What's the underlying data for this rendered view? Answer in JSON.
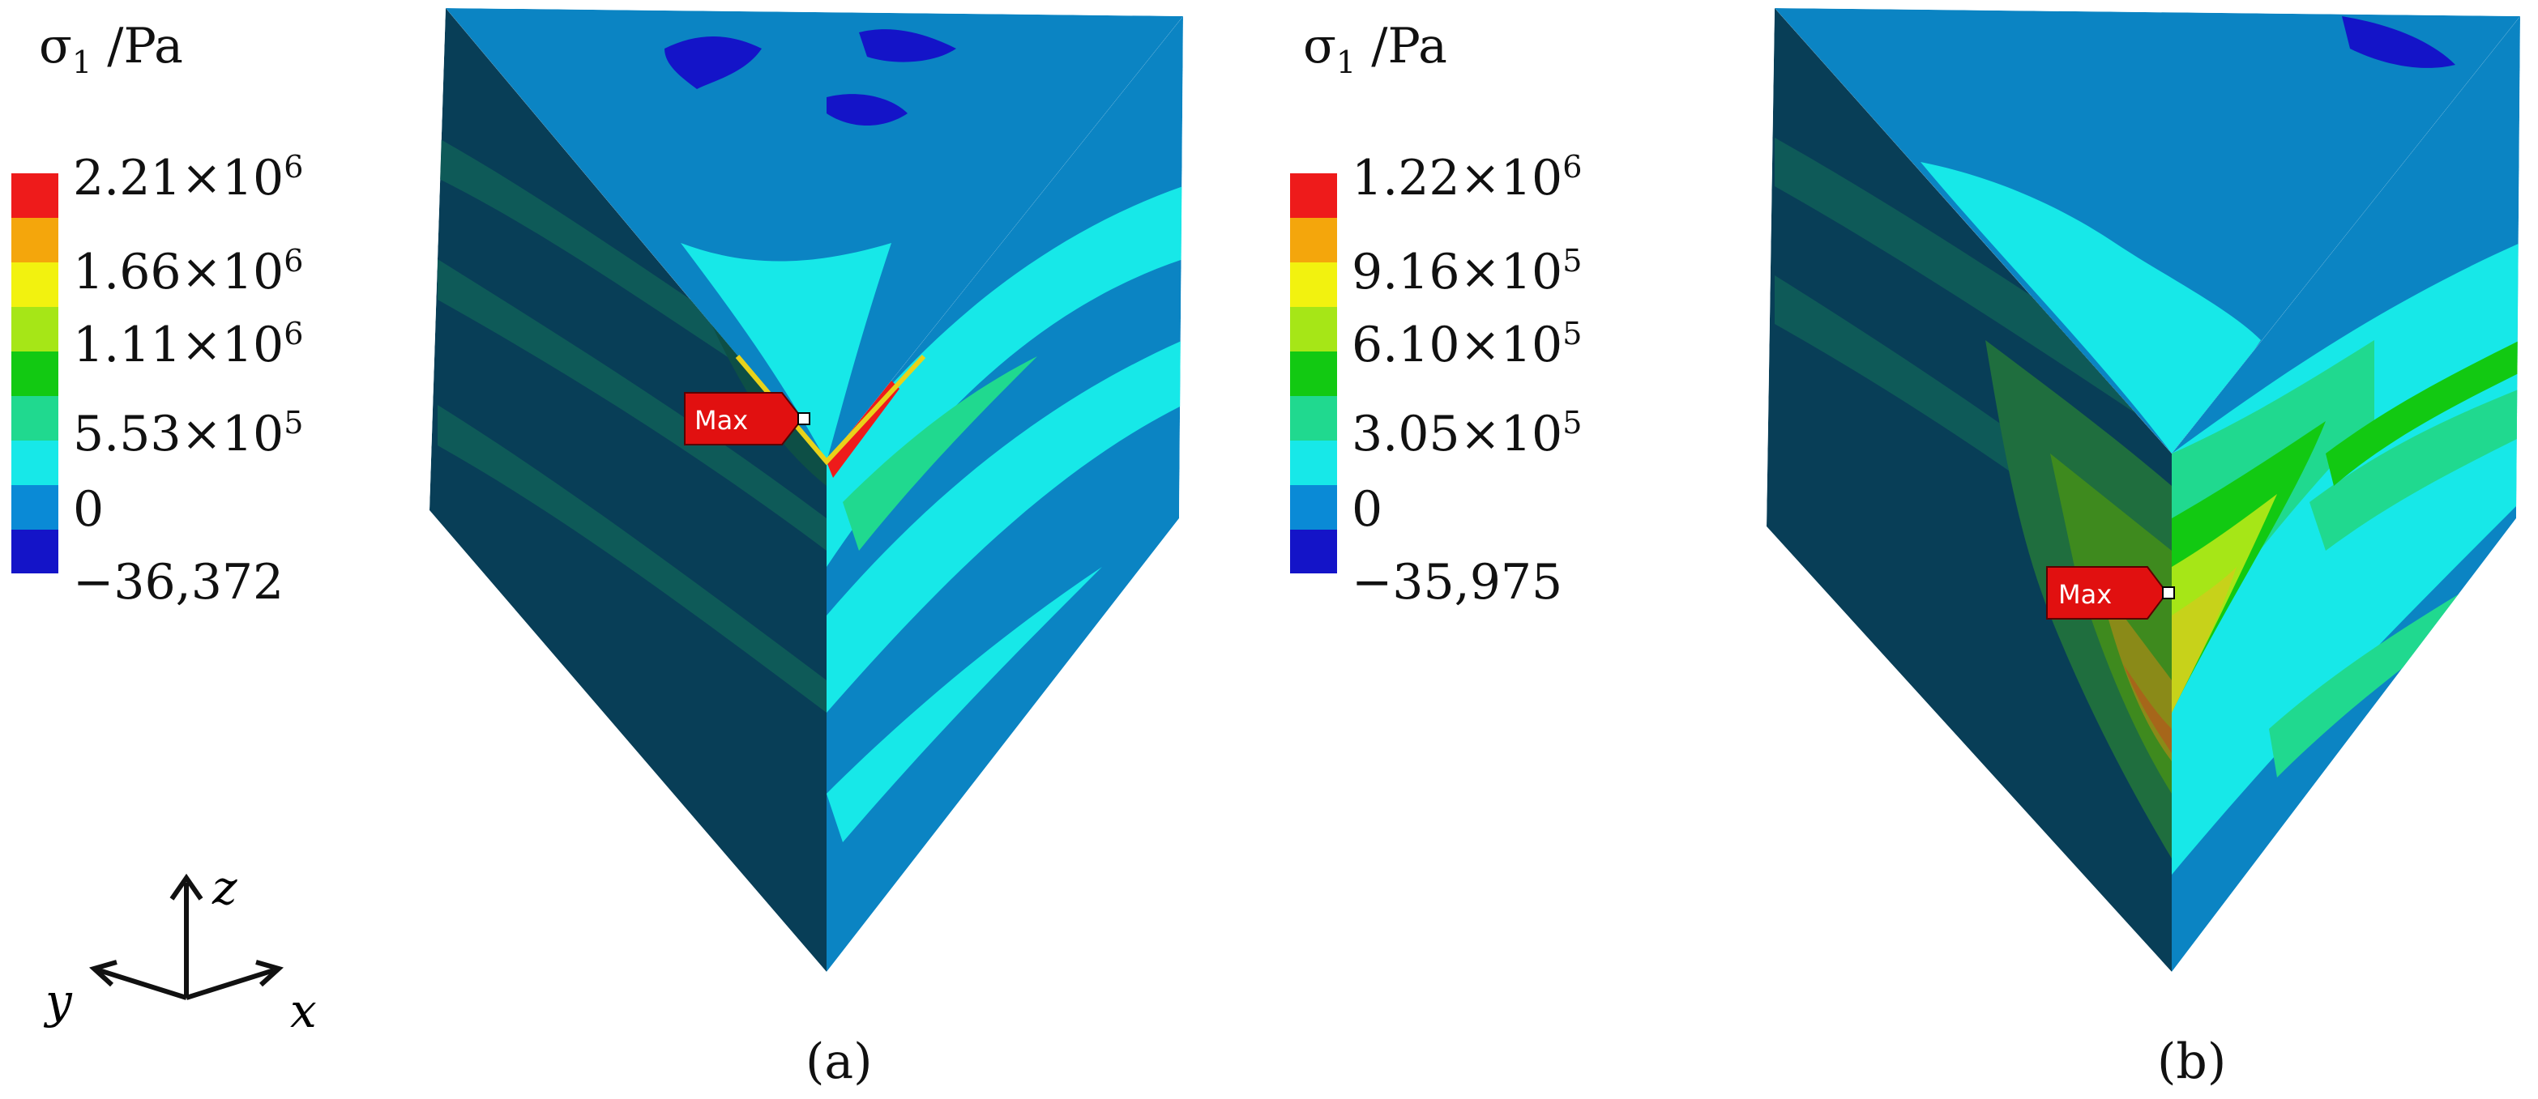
{
  "colors": {
    "band_1": "#1414c8",
    "band_2": "#0a8ad6",
    "band_3": "#17e8e8",
    "band_4": "#20d98f",
    "band_5": "#12c912",
    "band_6": "#a6e617",
    "band_7": "#f2f20f",
    "band_8": "#f4a60c",
    "band_9": "#ee1b1b",
    "face_dark": "#083e57",
    "face_blue": "#0b84c3",
    "max_tag": "#e11010"
  },
  "legend_a": {
    "symbol": "σ",
    "subscript": "1",
    "unit": " /Pa",
    "labels": [
      {
        "mantissa": "2.21",
        "times": "×",
        "base": "10",
        "exp": "6"
      },
      {
        "mantissa": "1.66",
        "times": "×",
        "base": "10",
        "exp": "6"
      },
      {
        "mantissa": "1.11",
        "times": "×",
        "base": "10",
        "exp": "6"
      },
      {
        "mantissa": "5.53",
        "times": "×",
        "base": "10",
        "exp": "5"
      },
      {
        "mantissa": "0",
        "times": "",
        "base": "",
        "exp": ""
      },
      {
        "mantissa": "−36,372",
        "times": "",
        "base": "",
        "exp": ""
      }
    ]
  },
  "legend_b": {
    "symbol": "σ",
    "subscript": "1",
    "unit": " /Pa",
    "labels": [
      {
        "mantissa": "1.22",
        "times": "×",
        "base": "10",
        "exp": "6"
      },
      {
        "mantissa": "9.16",
        "times": "×",
        "base": "10",
        "exp": "5"
      },
      {
        "mantissa": "6.10",
        "times": "×",
        "base": "10",
        "exp": "5"
      },
      {
        "mantissa": "3.05",
        "times": "×",
        "base": "10",
        "exp": "5"
      },
      {
        "mantissa": "0",
        "times": "",
        "base": "",
        "exp": ""
      },
      {
        "mantissa": "−35,975",
        "times": "",
        "base": "",
        "exp": ""
      }
    ]
  },
  "axes": {
    "z": "z",
    "y": "y",
    "x": "x"
  },
  "panel_a": {
    "max_tag": "Max",
    "caption": "(a)"
  },
  "panel_b": {
    "max_tag": "Max",
    "caption": "(b)"
  }
}
